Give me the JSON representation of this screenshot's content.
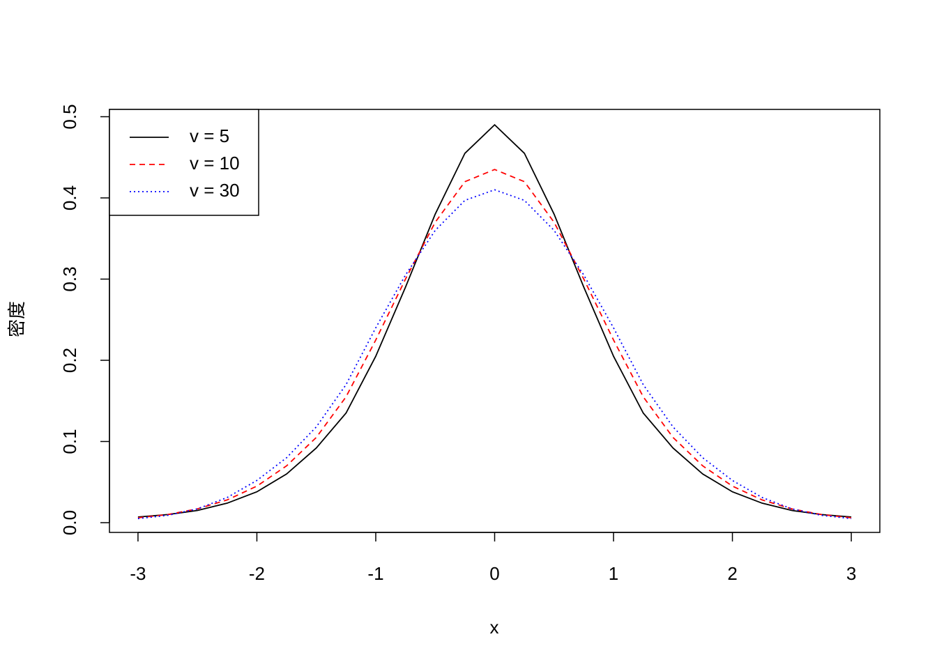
{
  "chart_data": {
    "type": "line",
    "xlabel": "x",
    "ylabel": "密度",
    "x": [
      -3,
      -2.75,
      -2.5,
      -2.25,
      -2,
      -1.75,
      -1.5,
      -1.25,
      -1,
      -0.75,
      -0.5,
      -0.25,
      0,
      0.25,
      0.5,
      0.75,
      1,
      1.25,
      1.5,
      1.75,
      2,
      2.25,
      2.5,
      2.75,
      3
    ],
    "series": [
      {
        "name": "v = 5",
        "color": "#000000",
        "linestyle": "solid",
        "values": [
          0.007,
          0.01,
          0.015,
          0.024,
          0.038,
          0.06,
          0.092,
          0.135,
          0.205,
          0.29,
          0.38,
          0.455,
          0.49,
          0.455,
          0.38,
          0.29,
          0.205,
          0.135,
          0.092,
          0.06,
          0.038,
          0.024,
          0.015,
          0.01,
          0.007
        ]
      },
      {
        "name": "v = 10",
        "color": "#ff0000",
        "linestyle": "dashed",
        "values": [
          0.006,
          0.01,
          0.017,
          0.028,
          0.045,
          0.07,
          0.105,
          0.155,
          0.225,
          0.3,
          0.37,
          0.42,
          0.435,
          0.42,
          0.37,
          0.3,
          0.225,
          0.155,
          0.105,
          0.07,
          0.045,
          0.028,
          0.017,
          0.01,
          0.006
        ]
      },
      {
        "name": "v = 30",
        "color": "#0000ff",
        "linestyle": "dotted",
        "values": [
          0.005,
          0.009,
          0.017,
          0.031,
          0.052,
          0.08,
          0.118,
          0.17,
          0.24,
          0.305,
          0.36,
          0.397,
          0.41,
          0.397,
          0.36,
          0.305,
          0.24,
          0.17,
          0.118,
          0.08,
          0.052,
          0.031,
          0.017,
          0.009,
          0.005
        ]
      }
    ],
    "xlim": [
      -3.24,
      3.24
    ],
    "ylim": [
      -0.012,
      0.509
    ],
    "xticks": [
      -3,
      -2,
      -1,
      0,
      1,
      2,
      3
    ],
    "yticks": [
      {
        "value": 0,
        "label": "0.0"
      },
      0.1,
      0.2,
      0.3,
      0.4,
      0.5
    ],
    "legend": "topleft"
  }
}
